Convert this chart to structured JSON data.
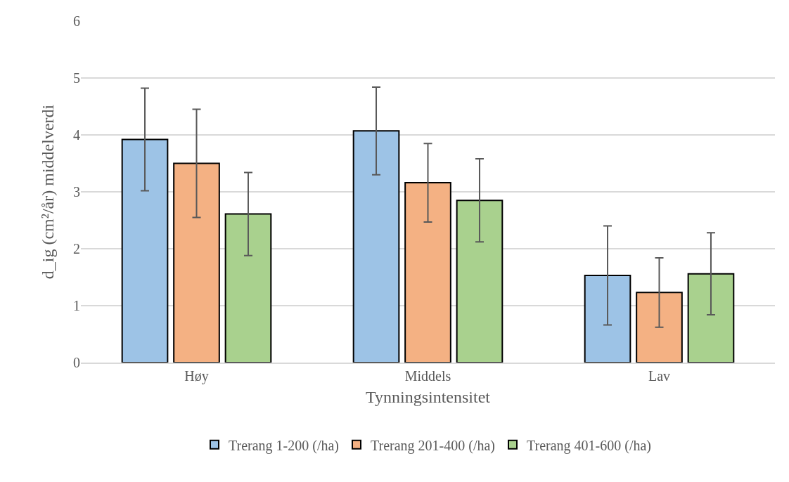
{
  "chart_data": {
    "type": "bar",
    "xlabel": "Tynningsintensitet",
    "ylabel": "d_ig (cm²/år) middelverdi",
    "categories": [
      "Høy",
      "Middels",
      "Lav"
    ],
    "series": [
      {
        "name": "Trerang 1-200 (/ha)",
        "color": "#9dc3e6",
        "values": [
          3.92,
          4.07,
          1.53
        ],
        "errors": [
          0.9,
          0.77,
          0.87
        ]
      },
      {
        "name": "Trerang 201-400 (/ha)",
        "color": "#f4b183",
        "values": [
          3.5,
          3.16,
          1.23
        ],
        "errors": [
          0.95,
          0.69,
          0.61
        ]
      },
      {
        "name": "Trerang 401-600 (/ha)",
        "color": "#a9d18e",
        "values": [
          2.61,
          2.85,
          1.56
        ],
        "errors": [
          0.73,
          0.73,
          0.72
        ]
      }
    ],
    "ylim": [
      0,
      6
    ],
    "yticks": [
      0,
      1,
      2,
      3,
      4,
      5,
      6
    ],
    "grid": "y",
    "legend": "bottom"
  }
}
